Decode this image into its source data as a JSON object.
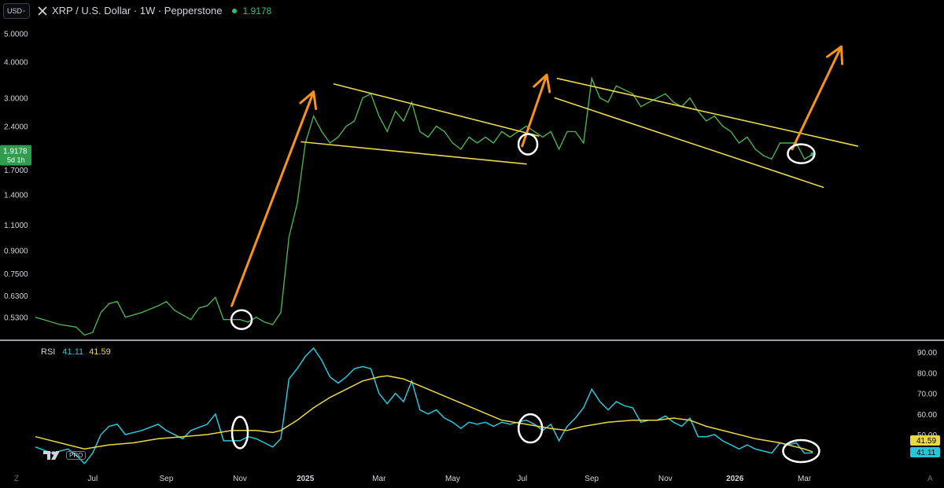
{
  "header": {
    "currency": "USD",
    "title": "XRP / U.S. Dollar · 1W · Pepperstone",
    "last_price": "1.9178",
    "colors": {
      "price_green": "#22c07a",
      "text": "#d1d4dc"
    }
  },
  "price_badge": {
    "price": "1.9178",
    "countdown": "5d 1h",
    "color": "#2e9e4e"
  },
  "rsi_header": {
    "name": "RSI",
    "value": "41.11",
    "ma_value": "41.59"
  },
  "logo": {
    "pro": "PRO"
  },
  "corners": {
    "left": "Z",
    "right": "A"
  },
  "chart_data": [
    {
      "type": "line",
      "name": "price",
      "scale": "log",
      "x_unit": "week index (0 = ~mid-May 2024)",
      "y_ticks": [
        5.0,
        4.0,
        3.0,
        2.4,
        2.0,
        1.7,
        1.4,
        1.1,
        0.9,
        0.75,
        0.63,
        0.53
      ],
      "y_tick_labels": [
        "5.0000",
        "4.0000",
        "3.0000",
        "2.4000",
        "2.0000",
        "1.7000",
        "1.4000",
        "1.1000",
        "0.9000",
        "0.7500",
        "0.6300",
        "0.5300"
      ],
      "ylim": [
        0.45,
        5.4
      ],
      "series": [
        {
          "color": "#4caf50",
          "points": [
            [
              0,
              0.53
            ],
            [
              3,
              0.5
            ],
            [
              5,
              0.49
            ],
            [
              6,
              0.46
            ],
            [
              7,
              0.47
            ],
            [
              8,
              0.55
            ],
            [
              9,
              0.59
            ],
            [
              10,
              0.6
            ],
            [
              11,
              0.53
            ],
            [
              13,
              0.55
            ],
            [
              15,
              0.58
            ],
            [
              16,
              0.6
            ],
            [
              17,
              0.56
            ],
            [
              19,
              0.52
            ],
            [
              20,
              0.57
            ],
            [
              21,
              0.58
            ],
            [
              22,
              0.62
            ],
            [
              23,
              0.52
            ],
            [
              25,
              0.52
            ],
            [
              26,
              0.51
            ],
            [
              27,
              0.53
            ],
            [
              28,
              0.51
            ],
            [
              29,
              0.5
            ],
            [
              30,
              0.55
            ],
            [
              31,
              1.0
            ],
            [
              32,
              1.3
            ],
            [
              33,
              2.1
            ],
            [
              34,
              2.6
            ],
            [
              35,
              2.3
            ],
            [
              36,
              2.1
            ],
            [
              37,
              2.2
            ],
            [
              38,
              2.4
            ],
            [
              39,
              2.5
            ],
            [
              40,
              3.0
            ],
            [
              41,
              3.1
            ],
            [
              42,
              2.6
            ],
            [
              43,
              2.3
            ],
            [
              44,
              2.7
            ],
            [
              45,
              2.5
            ],
            [
              46,
              2.9
            ],
            [
              47,
              2.3
            ],
            [
              48,
              2.2
            ],
            [
              49,
              2.4
            ],
            [
              50,
              2.3
            ],
            [
              51,
              2.1
            ],
            [
              52,
              2.0
            ],
            [
              53,
              2.2
            ],
            [
              54,
              2.1
            ],
            [
              55,
              2.2
            ],
            [
              56,
              2.1
            ],
            [
              57,
              2.3
            ],
            [
              58,
              2.2
            ],
            [
              59,
              2.3
            ],
            [
              60,
              2.4
            ],
            [
              61,
              2.3
            ],
            [
              62,
              2.2
            ],
            [
              63,
              2.3
            ],
            [
              64,
              2.0
            ],
            [
              65,
              2.3
            ],
            [
              66,
              2.3
            ],
            [
              67,
              2.1
            ],
            [
              68,
              3.5
            ],
            [
              69,
              3.0
            ],
            [
              70,
              2.9
            ],
            [
              71,
              3.3
            ],
            [
              72,
              3.2
            ],
            [
              73,
              3.1
            ],
            [
              74,
              2.8
            ],
            [
              75,
              2.9
            ],
            [
              76,
              3.0
            ],
            [
              77,
              3.1
            ],
            [
              78,
              2.9
            ],
            [
              79,
              2.8
            ],
            [
              80,
              3.0
            ],
            [
              81,
              2.7
            ],
            [
              82,
              2.5
            ],
            [
              83,
              2.6
            ],
            [
              84,
              2.4
            ],
            [
              85,
              2.3
            ],
            [
              86,
              2.1
            ],
            [
              87,
              2.2
            ],
            [
              88,
              2.0
            ],
            [
              89,
              1.9
            ],
            [
              90,
              1.85
            ],
            [
              91,
              2.1
            ],
            [
              92,
              2.1
            ],
            [
              93,
              2.1
            ],
            [
              94,
              1.85
            ],
            [
              95,
              1.92
            ]
          ]
        }
      ],
      "last_value": 1.9178
    },
    {
      "type": "line",
      "name": "RSI",
      "ylim": [
        34,
        95
      ],
      "y_ticks": [
        90,
        80,
        70,
        60,
        50
      ],
      "y_tick_labels": [
        "90.00",
        "80.00",
        "70.00",
        "60.00",
        "50.00"
      ],
      "series": [
        {
          "label": "RSI",
          "color": "#26c6da",
          "points": [
            [
              0,
              44
            ],
            [
              2,
              41
            ],
            [
              4,
              43
            ],
            [
              5,
              40
            ],
            [
              6,
              36
            ],
            [
              7,
              41
            ],
            [
              8,
              50
            ],
            [
              9,
              54
            ],
            [
              10,
              55
            ],
            [
              11,
              50
            ],
            [
              13,
              52
            ],
            [
              15,
              55
            ],
            [
              16,
              52
            ],
            [
              18,
              48
            ],
            [
              19,
              52
            ],
            [
              21,
              55
            ],
            [
              22,
              60
            ],
            [
              23,
              47
            ],
            [
              25,
              47
            ],
            [
              26,
              49
            ],
            [
              27,
              48
            ],
            [
              28,
              46
            ],
            [
              29,
              44
            ],
            [
              30,
              48
            ],
            [
              31,
              77
            ],
            [
              32,
              82
            ],
            [
              33,
              88
            ],
            [
              34,
              92
            ],
            [
              35,
              86
            ],
            [
              36,
              78
            ],
            [
              37,
              75
            ],
            [
              38,
              78
            ],
            [
              39,
              82
            ],
            [
              40,
              83
            ],
            [
              41,
              82
            ],
            [
              42,
              70
            ],
            [
              43,
              65
            ],
            [
              44,
              70
            ],
            [
              45,
              66
            ],
            [
              46,
              76
            ],
            [
              47,
              62
            ],
            [
              48,
              60
            ],
            [
              49,
              62
            ],
            [
              50,
              58
            ],
            [
              51,
              56
            ],
            [
              52,
              53
            ],
            [
              53,
              56
            ],
            [
              54,
              55
            ],
            [
              55,
              56
            ],
            [
              56,
              54
            ],
            [
              57,
              56
            ],
            [
              58,
              55
            ],
            [
              59,
              56
            ],
            [
              60,
              57
            ],
            [
              61,
              55
            ],
            [
              62,
              52
            ],
            [
              63,
              55
            ],
            [
              64,
              47
            ],
            [
              65,
              54
            ],
            [
              66,
              58
            ],
            [
              67,
              63
            ],
            [
              68,
              72
            ],
            [
              69,
              66
            ],
            [
              70,
              62
            ],
            [
              71,
              66
            ],
            [
              72,
              64
            ],
            [
              73,
              63
            ],
            [
              74,
              56
            ],
            [
              75,
              57
            ],
            [
              76,
              57
            ],
            [
              77,
              59
            ],
            [
              78,
              56
            ],
            [
              79,
              54
            ],
            [
              80,
              58
            ],
            [
              81,
              49
            ],
            [
              82,
              49
            ],
            [
              83,
              50
            ],
            [
              84,
              47
            ],
            [
              85,
              45
            ],
            [
              86,
              43
            ],
            [
              87,
              45
            ],
            [
              88,
              43
            ],
            [
              89,
              42
            ],
            [
              90,
              41
            ],
            [
              91,
              46
            ],
            [
              92,
              45
            ],
            [
              93,
              46
            ],
            [
              94,
              41
            ],
            [
              95,
              41.11
            ]
          ]
        },
        {
          "label": "RSI-based MA",
          "color": "#e9d840",
          "points": [
            [
              0,
              49
            ],
            [
              3,
              46
            ],
            [
              6,
              43
            ],
            [
              9,
              45
            ],
            [
              12,
              46
            ],
            [
              15,
              48
            ],
            [
              18,
              49
            ],
            [
              21,
              50
            ],
            [
              24,
              52
            ],
            [
              27,
              52
            ],
            [
              29,
              51
            ],
            [
              30,
              52
            ],
            [
              32,
              57
            ],
            [
              34,
              63
            ],
            [
              36,
              68
            ],
            [
              38,
              72
            ],
            [
              40,
              76
            ],
            [
              42,
              78
            ],
            [
              43,
              78.5
            ],
            [
              45,
              77
            ],
            [
              48,
              72
            ],
            [
              51,
              67
            ],
            [
              54,
              62
            ],
            [
              57,
              57
            ],
            [
              60,
              55
            ],
            [
              63,
              53
            ],
            [
              65,
              52
            ],
            [
              67,
              54
            ],
            [
              70,
              56
            ],
            [
              73,
              57
            ],
            [
              76,
              57
            ],
            [
              78,
              58
            ],
            [
              80,
              57
            ],
            [
              82,
              54
            ],
            [
              85,
              51
            ],
            [
              88,
              48
            ],
            [
              91,
              46
            ],
            [
              94,
              43
            ],
            [
              95,
              41.59
            ]
          ]
        }
      ],
      "value_labels": [
        "41.59",
        "41.11"
      ]
    }
  ],
  "x_axis": {
    "labels": [
      {
        "text": "Jul",
        "week": 7
      },
      {
        "text": "Sep",
        "week": 16
      },
      {
        "text": "Nov",
        "week": 25
      },
      {
        "text": "2025",
        "week": 33
      },
      {
        "text": "Mar",
        "week": 42
      },
      {
        "text": "May",
        "week": 51
      },
      {
        "text": "Jul",
        "week": 59.5
      },
      {
        "text": "Sep",
        "week": 68
      },
      {
        "text": "Nov",
        "week": 77
      },
      {
        "text": "2026",
        "week": 85.5
      },
      {
        "text": "Mar",
        "week": 94
      }
    ]
  },
  "annotations": {
    "trendlines_color": "#e8d84a",
    "arrow_color": "#f7931a",
    "circle_color": "#ffffff"
  }
}
